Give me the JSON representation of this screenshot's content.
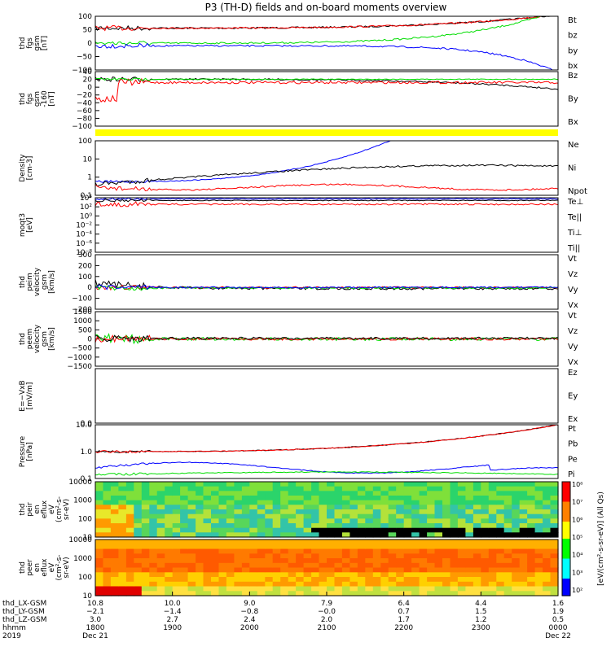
{
  "title": "P3 (TH-D) fields and on-board moments overview",
  "colors": {
    "black": "#000000",
    "red": "#ff0000",
    "green": "#00dd00",
    "blue": "#0000ff",
    "yellow": "#ffff00"
  },
  "chart_data": [
    {
      "id": "fgs",
      "type": "line",
      "ylabel": [
        "thd",
        "fgs",
        "gsm",
        "[nT]"
      ],
      "ylim": [
        -100,
        100
      ],
      "ticks": [
        "100",
        "50",
        "0",
        "−50",
        "−100"
      ],
      "legend": [
        {
          "name": "Bt",
          "color": "black"
        },
        {
          "name": "bz",
          "color": "red"
        },
        {
          "name": "by",
          "color": "green"
        },
        {
          "name": "bx",
          "color": "blue"
        }
      ]
    },
    {
      "id": "fgs_cal",
      "type": "line",
      "ylabel": [
        "thd",
        "fgs",
        "gsm",
        "-160",
        " [nT]"
      ],
      "ylim": [
        -100,
        40
      ],
      "ticks": [
        "40",
        "20",
        "0",
        "−20",
        "−40",
        "−60",
        "−80",
        "−100"
      ],
      "legend": [
        {
          "name": "Bz",
          "color": "red"
        },
        {
          "name": "By",
          "color": "green"
        },
        {
          "name": "Bx",
          "color": "black"
        }
      ]
    },
    {
      "id": "density",
      "type": "line",
      "ylabel": [
        "Density",
        "[cm-3]"
      ],
      "ylog": true,
      "ticks": [
        "100",
        "10",
        "1",
        "0.1"
      ],
      "legend": [
        {
          "name": "Ne",
          "color": "red"
        },
        {
          "name": "Ni",
          "color": "black"
        },
        {
          "name": "Npot",
          "color": "blue"
        }
      ]
    },
    {
      "id": "temperature",
      "type": "line",
      "ylabel": [
        "moqt3",
        "[eV]"
      ],
      "ylog": true,
      "ticks": [
        "10⁴",
        "10²",
        "10⁰",
        "10⁻²",
        "10⁻⁴",
        "10⁻⁶",
        "10⁻⁸"
      ],
      "legend": [
        {
          "name": "Te⊥",
          "color": "red"
        },
        {
          "name": "Te||",
          "color": "black"
        },
        {
          "name": "Ti⊥",
          "color": "green"
        },
        {
          "name": "Ti||",
          "color": "green"
        }
      ]
    },
    {
      "id": "ion_velocity",
      "type": "line",
      "ylabel": [
        "thd",
        "peim",
        "velocity",
        "gsm",
        "[km/s]"
      ],
      "ylim": [
        -200,
        300
      ],
      "ticks": [
        "300",
        "200",
        "100",
        "0",
        "−100",
        "−200"
      ],
      "legend": [
        {
          "name": "Vt",
          "color": "black"
        },
        {
          "name": "Vz",
          "color": "red"
        },
        {
          "name": "Vy",
          "color": "green"
        },
        {
          "name": "Vx",
          "color": "blue"
        }
      ]
    },
    {
      "id": "electron_velocity",
      "type": "line",
      "ylabel": [
        "thd",
        "peem",
        "velocity",
        "gsm",
        "[km/s]"
      ],
      "ylim": [
        -1500,
        1500
      ],
      "ticks": [
        "1500",
        "1000",
        "500",
        "0",
        "−500",
        "−1000",
        "−1500"
      ],
      "legend": [
        {
          "name": "Vt",
          "color": "black"
        },
        {
          "name": "Vz",
          "color": "red"
        },
        {
          "name": "Vy",
          "color": "green"
        },
        {
          "name": "Vx",
          "color": "blue"
        }
      ]
    },
    {
      "id": "efield",
      "type": "line",
      "ylabel": [
        "E=−VxB",
        "[mV/m]"
      ],
      "ylim": [
        0,
        1
      ],
      "ticks": [
        "0.0"
      ],
      "legend": [
        {
          "name": "Ez",
          "color": "red"
        },
        {
          "name": "Ey",
          "color": "green"
        },
        {
          "name": "Ex",
          "color": "blue"
        }
      ]
    },
    {
      "id": "pressure",
      "type": "line",
      "ylabel": [
        "Pressure",
        "[nPa]"
      ],
      "ylog": true,
      "ticks": [
        "10.0",
        "1.0",
        "0.1"
      ],
      "legend": [
        {
          "name": "Pt",
          "color": "black"
        },
        {
          "name": "Pb",
          "color": "red"
        },
        {
          "name": "Pe",
          "color": "green"
        },
        {
          "name": "Pi",
          "color": "blue"
        }
      ]
    },
    {
      "id": "ion_spectrogram",
      "type": "heatmap",
      "ylabel": [
        "thd",
        "peir",
        "en",
        "eflux",
        "eV",
        "(cm²-s-",
        "sr-eV)"
      ],
      "ticks": [
        "10000",
        "1000",
        "100",
        "10"
      ]
    },
    {
      "id": "electron_spectrogram",
      "type": "heatmap",
      "ylabel": [
        "thd",
        "peer",
        "en",
        "eflux",
        "eV",
        "(cm²-s-",
        "sr-eV)"
      ],
      "ticks": [
        "10000",
        "1000",
        "100",
        "10"
      ]
    }
  ],
  "colorbar": {
    "ticks": [
      "10⁸",
      "10⁷",
      "10⁶",
      "10⁵",
      "10⁴",
      "10³",
      "10²"
    ],
    "label": "[eV/(cm²-s-sr-eV)] (All Qs)"
  },
  "x_axis": {
    "rows": [
      {
        "label": "thd_LX-GSM",
        "values": [
          "10.8",
          "10.0",
          "9.0",
          "7.9",
          "6.4",
          "4.4",
          "1.6"
        ]
      },
      {
        "label": "thd_LY-GSM",
        "values": [
          "−2.1",
          "−1.4",
          "−0.8",
          "−0.0",
          "0.7",
          "1.5",
          "1.9"
        ]
      },
      {
        "label": "thd_LZ-GSM",
        "values": [
          "3.0",
          "2.7",
          "2.4",
          "2.0",
          "1.7",
          "1.2",
          "0.5"
        ]
      },
      {
        "label": "hhmm",
        "values": [
          "1800",
          "1900",
          "2000",
          "2100",
          "2200",
          "2300",
          "0000"
        ]
      },
      {
        "label": "2019",
        "values": [
          "Dec 21",
          "",
          "",
          "",
          "",
          "",
          "Dec 22"
        ]
      }
    ]
  }
}
